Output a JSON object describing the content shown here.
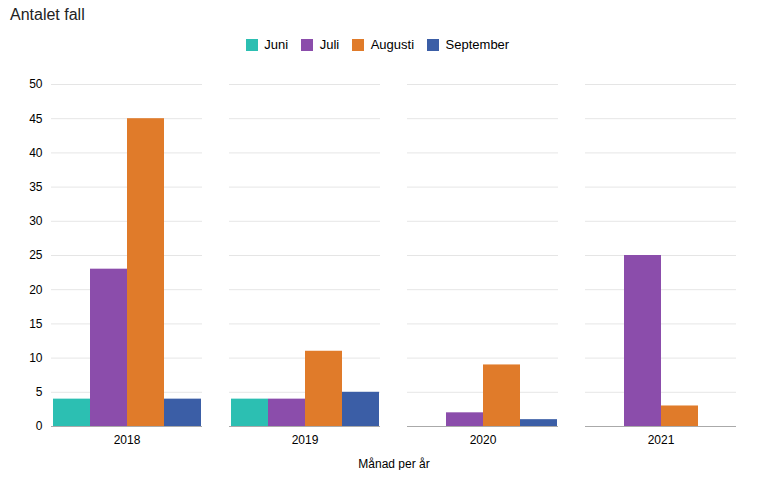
{
  "chart_data": {
    "type": "bar",
    "title": "Antalet fall",
    "xlabel": "Månad per år",
    "categories": [
      "2018",
      "2019",
      "2020",
      "2021"
    ],
    "series": [
      {
        "name": "Juni",
        "color": "#2CBFB2",
        "values": [
          4,
          4,
          0,
          0
        ]
      },
      {
        "name": "Juli",
        "color": "#8B4DAB",
        "values": [
          23,
          4,
          2,
          25
        ]
      },
      {
        "name": "Augusti",
        "color": "#E07B2A",
        "values": [
          45,
          11,
          9,
          3
        ]
      },
      {
        "name": "September",
        "color": "#3B5EA6",
        "values": [
          4,
          5,
          1,
          0
        ]
      }
    ],
    "ylim": [
      0,
      50
    ],
    "yticks": [
      0,
      5,
      10,
      15,
      20,
      25,
      30,
      35,
      40,
      45,
      50
    ],
    "grid": true,
    "legend": "top"
  }
}
